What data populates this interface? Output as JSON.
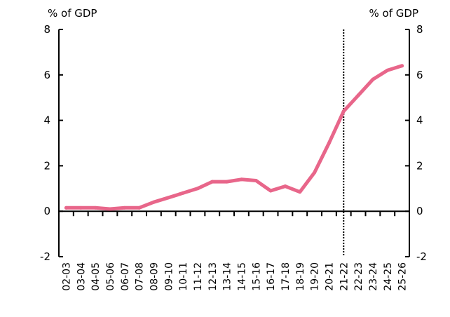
{
  "chart_data": {
    "type": "line",
    "title": "",
    "left_unit": "% of GDP",
    "right_unit": "% of GDP",
    "categories": [
      "02-03",
      "03-04",
      "04-05",
      "05-06",
      "06-07",
      "07-08",
      "08-09",
      "09-10",
      "10-11",
      "11-12",
      "12-13",
      "13-14",
      "14-15",
      "15-16",
      "16-17",
      "17-18",
      "18-19",
      "19-20",
      "20-21",
      "21-22",
      "22-23",
      "23-24",
      "24-25",
      "25-26"
    ],
    "series": [
      {
        "color": "#e8668a",
        "values": [
          0.15,
          0.15,
          0.15,
          0.1,
          0.15,
          0.15,
          0.4,
          0.6,
          0.8,
          1.0,
          1.3,
          1.3,
          1.4,
          1.35,
          0.9,
          1.1,
          0.85,
          1.7,
          3.0,
          4.4,
          5.1,
          5.8,
          6.2,
          6.4
        ]
      }
    ],
    "ylim": [
      -2,
      8
    ],
    "yticks": [
      -2,
      0,
      2,
      4,
      6,
      8
    ],
    "ytick_labels": [
      "-2",
      "0",
      "2",
      "4",
      "6",
      "8"
    ],
    "forecast_divider_category": "21-22",
    "grid": false
  }
}
